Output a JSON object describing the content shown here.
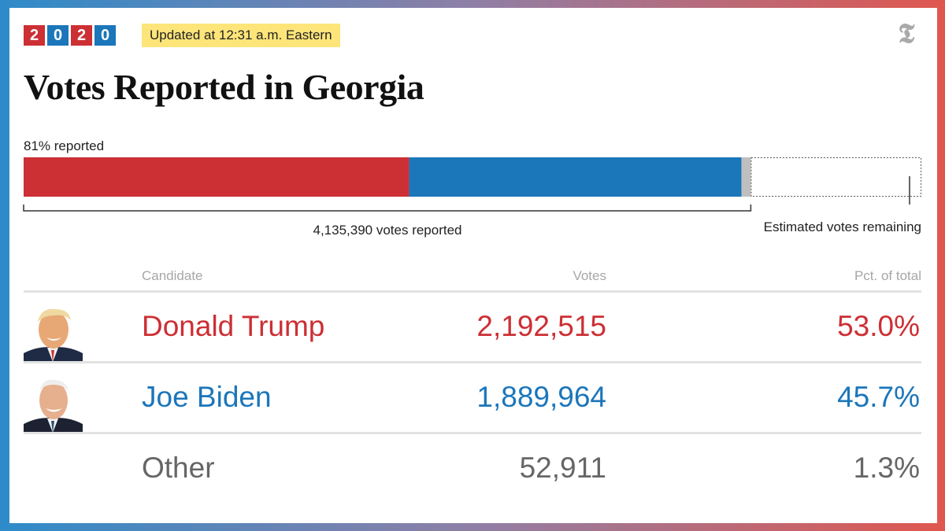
{
  "header": {
    "year_digits": [
      "2",
      "0",
      "2",
      "0"
    ],
    "updated": "Updated at 12:31 a.m. Eastern",
    "logo": "𝕿",
    "title": "Votes Reported in Georgia"
  },
  "colors": {
    "republican": "#cc2f34",
    "democrat": "#1b76ba",
    "other": "#bfbfbf",
    "gradient_left": "#2e8bc9",
    "gradient_right": "#e0574f"
  },
  "chart_data": {
    "type": "stacked-bar",
    "reported_label": "81% reported",
    "reported_fraction": 0.81,
    "total_reported_label": "4,135,390 votes reported",
    "total_reported": 4135390,
    "remaining_label": "Estimated votes remaining",
    "segments": [
      {
        "name": "Donald Trump",
        "votes": 2192515
      },
      {
        "name": "Joe Biden",
        "votes": 1889964
      },
      {
        "name": "Other",
        "votes": 52911
      }
    ]
  },
  "table": {
    "headers": {
      "candidate": "Candidate",
      "votes": "Votes",
      "pct": "Pct. of total"
    },
    "rows": [
      {
        "name": "Donald Trump",
        "votes": "2,192,515",
        "pct": "53.0%"
      },
      {
        "name": "Joe Biden",
        "votes": "1,889,964",
        "pct": "45.7%"
      },
      {
        "name": "Other",
        "votes": "52,911",
        "pct": "1.3%"
      }
    ]
  }
}
